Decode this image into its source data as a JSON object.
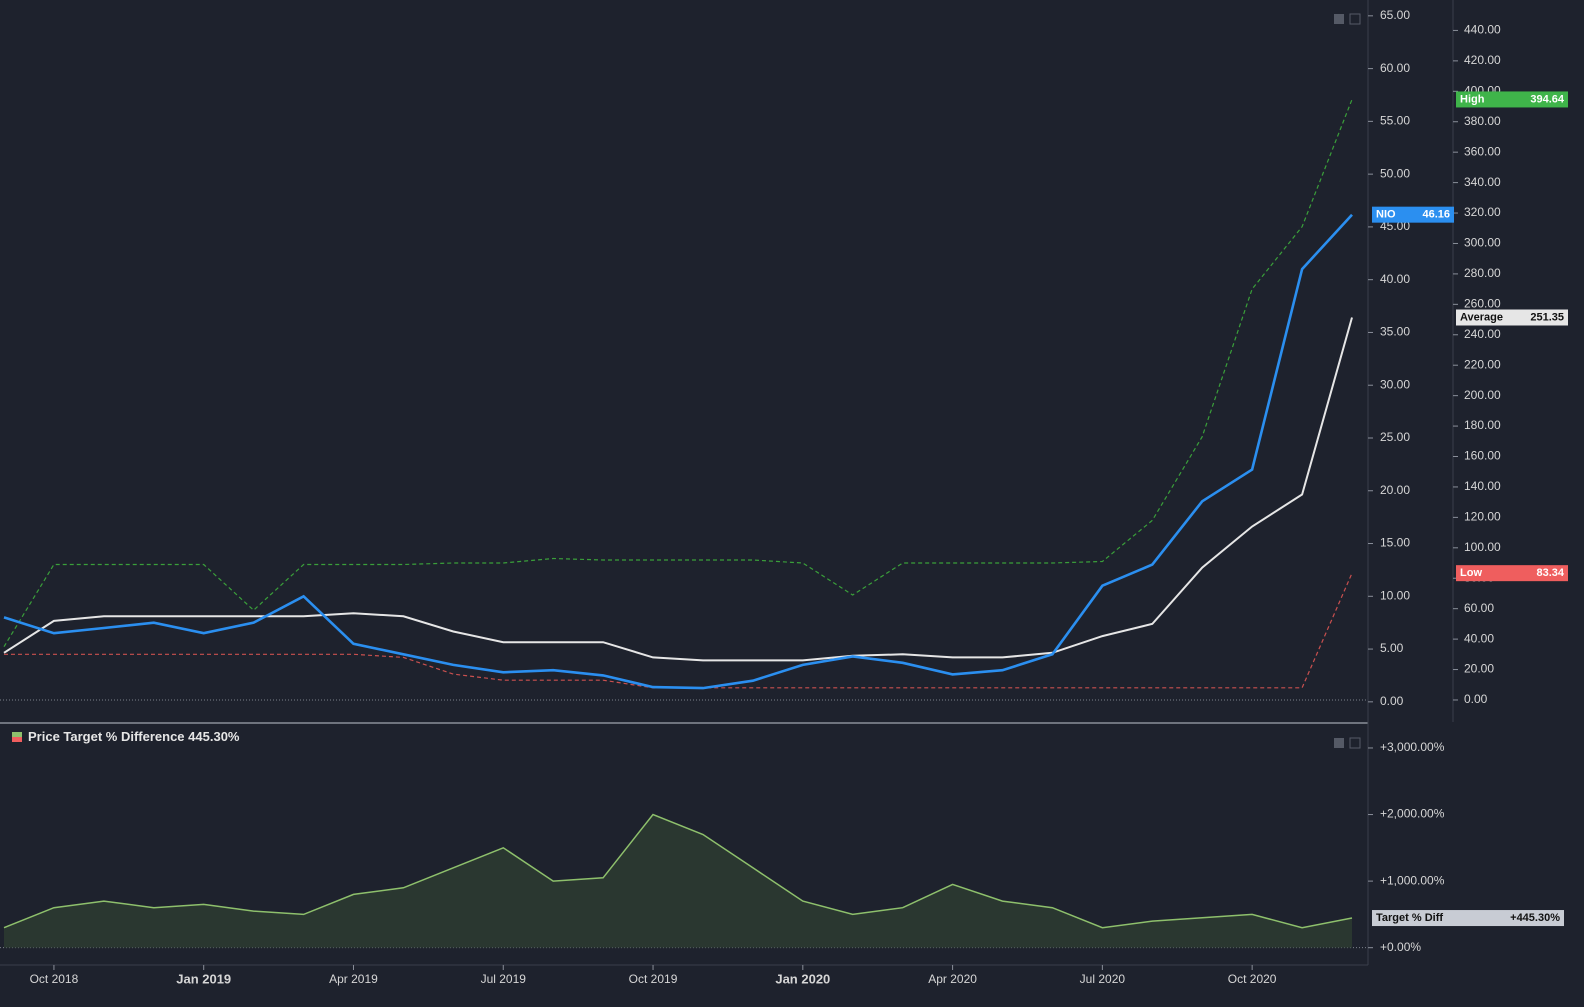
{
  "chart_data": [
    {
      "type": "line",
      "x": [
        "2018-09",
        "2018-10",
        "2018-11",
        "2018-12",
        "2019-01",
        "2019-02",
        "2019-03",
        "2019-04",
        "2019-05",
        "2019-06",
        "2019-07",
        "2019-08",
        "2019-09",
        "2019-10",
        "2019-11",
        "2019-12",
        "2020-01",
        "2020-02",
        "2020-03",
        "2020-04",
        "2020-05",
        "2020-06",
        "2020-07",
        "2020-08",
        "2020-09",
        "2020-10",
        "2020-11",
        "2020-12"
      ],
      "xlim": [
        "2018-09",
        "2020-12"
      ],
      "xticks": [
        {
          "value": "2018-10",
          "label": "Oct 2018"
        },
        {
          "value": "2019-01",
          "label": "Jan 2019"
        },
        {
          "value": "2019-04",
          "label": "Apr 2019"
        },
        {
          "value": "2019-07",
          "label": "Jul 2019"
        },
        {
          "value": "2019-10",
          "label": "Oct 2019"
        },
        {
          "value": "2020-01",
          "label": "Jan 2020"
        },
        {
          "value": "2020-04",
          "label": "Apr 2020"
        },
        {
          "value": "2020-07",
          "label": "Jul 2020"
        },
        {
          "value": "2020-10",
          "label": "Oct 2020"
        }
      ],
      "ylim": [
        -0.3,
        66.5
      ],
      "yticks": [
        {
          "value": 0,
          "label": "0.00"
        },
        {
          "value": 5,
          "label": "5.00"
        },
        {
          "value": 10,
          "label": "10.00"
        },
        {
          "value": 15,
          "label": "15.00"
        },
        {
          "value": 20,
          "label": "20.00"
        },
        {
          "value": 25,
          "label": "25.00"
        },
        {
          "value": 30,
          "label": "30.00"
        },
        {
          "value": 35,
          "label": "35.00"
        },
        {
          "value": 40,
          "label": "40.00"
        },
        {
          "value": 45,
          "label": "45.00"
        },
        {
          "value": 50,
          "label": "50.00"
        },
        {
          "value": 55,
          "label": "55.00"
        },
        {
          "value": 60,
          "label": "60.00"
        },
        {
          "value": 65,
          "label": "65.00"
        }
      ],
      "y2lim": [
        -3.3,
        460
      ],
      "y2ticks": [
        {
          "value": 0,
          "label": "0.00"
        },
        {
          "value": 20,
          "label": "20.00"
        },
        {
          "value": 40,
          "label": "40.00"
        },
        {
          "value": 60,
          "label": "60.00"
        },
        {
          "value": 80,
          "label": "80.00"
        },
        {
          "value": 100,
          "label": "100.00"
        },
        {
          "value": 120,
          "label": "120.00"
        },
        {
          "value": 140,
          "label": "140.00"
        },
        {
          "value": 160,
          "label": "160.00"
        },
        {
          "value": 180,
          "label": "180.00"
        },
        {
          "value": 200,
          "label": "200.00"
        },
        {
          "value": 220,
          "label": "220.00"
        },
        {
          "value": 240,
          "label": "240.00"
        },
        {
          "value": 260,
          "label": "260.00"
        },
        {
          "value": 280,
          "label": "280.00"
        },
        {
          "value": 300,
          "label": "300.00"
        },
        {
          "value": 320,
          "label": "320.00"
        },
        {
          "value": 340,
          "label": "340.00"
        },
        {
          "value": 360,
          "label": "360.00"
        },
        {
          "value": 380,
          "label": "380.00"
        },
        {
          "value": 400,
          "label": "400.00"
        },
        {
          "value": 420,
          "label": "420.00"
        },
        {
          "value": 440,
          "label": "440.00"
        }
      ],
      "series": [
        {
          "name": "High",
          "axis": "y2",
          "color": "#3a9f3a",
          "dashed": true,
          "values": [
            35,
            89,
            89,
            89,
            89,
            59,
            89,
            89,
            89,
            90,
            90,
            93,
            92,
            92,
            92,
            92,
            90,
            69,
            90,
            90,
            90,
            90,
            91,
            118,
            173,
            270,
            311,
            394.64
          ],
          "last_label": "394.64",
          "badge_color": "#3fb44a"
        },
        {
          "name": "Low",
          "axis": "y2",
          "color": "#c9504f",
          "dashed": true,
          "values": [
            30,
            30,
            30,
            30,
            30,
            30,
            30,
            30,
            28,
            17,
            13,
            13,
            13,
            8,
            8,
            8,
            8,
            8,
            8,
            8,
            8,
            8,
            8,
            8,
            8,
            8,
            8,
            83.34
          ],
          "last_label": "83.34",
          "badge_color": "#ef5e5e"
        },
        {
          "name": "Average",
          "axis": "y2",
          "color": "#e6e6e6",
          "dashed": false,
          "values": [
            31,
            52,
            55,
            55,
            55,
            55,
            55,
            57,
            55,
            45,
            38,
            38,
            38,
            28,
            26,
            26,
            26,
            29,
            30,
            28,
            28,
            31,
            42,
            50,
            87,
            114,
            135,
            251.35
          ],
          "last_label": "251.35",
          "badge_color": "#e6e6e6"
        },
        {
          "name": "NIO",
          "color": "#2b8ff0",
          "dashed": false,
          "values": [
            8,
            6.5,
            7,
            7.5,
            6.5,
            7.5,
            10,
            5.5,
            4.5,
            3.5,
            2.8,
            3,
            2.5,
            1.4,
            1.3,
            2,
            3.5,
            4.3,
            3.7,
            2.6,
            3,
            4.5,
            11,
            13,
            19,
            22,
            41,
            46.16
          ],
          "last_label": "46.16",
          "badge_color": "#2b8ff0"
        }
      ]
    },
    {
      "type": "area",
      "title": "Price Target % Difference",
      "title_value": "445.30%",
      "x": [
        "2018-09",
        "2018-10",
        "2018-11",
        "2018-12",
        "2019-01",
        "2019-02",
        "2019-03",
        "2019-04",
        "2019-05",
        "2019-06",
        "2019-07",
        "2019-08",
        "2019-09",
        "2019-10",
        "2019-11",
        "2019-12",
        "2020-01",
        "2020-02",
        "2020-03",
        "2020-04",
        "2020-05",
        "2020-06",
        "2020-07",
        "2020-08",
        "2020-09",
        "2020-10",
        "2020-11",
        "2020-12"
      ],
      "xlim": [
        "2018-09",
        "2020-12"
      ],
      "ylim": [
        -200,
        3300
      ],
      "yticks": [
        {
          "value": 0,
          "label": "+0.00%"
        },
        {
          "value": 1000,
          "label": "+1,000.00%"
        },
        {
          "value": 2000,
          "label": "+2,000.00%"
        },
        {
          "value": 3000,
          "label": "+3,000.00%"
        }
      ],
      "series": [
        {
          "name": "Target % Diff",
          "color": "#8ec06c",
          "values": [
            300,
            600,
            700,
            600,
            650,
            550,
            500,
            800,
            900,
            1200,
            1500,
            1000,
            1050,
            2000,
            1700,
            1200,
            700,
            500,
            600,
            950,
            700,
            600,
            300,
            400,
            450,
            500,
            300,
            445.3
          ],
          "last_label": "+445.30%",
          "badge_color": "#c8ccd4"
        }
      ]
    }
  ]
}
